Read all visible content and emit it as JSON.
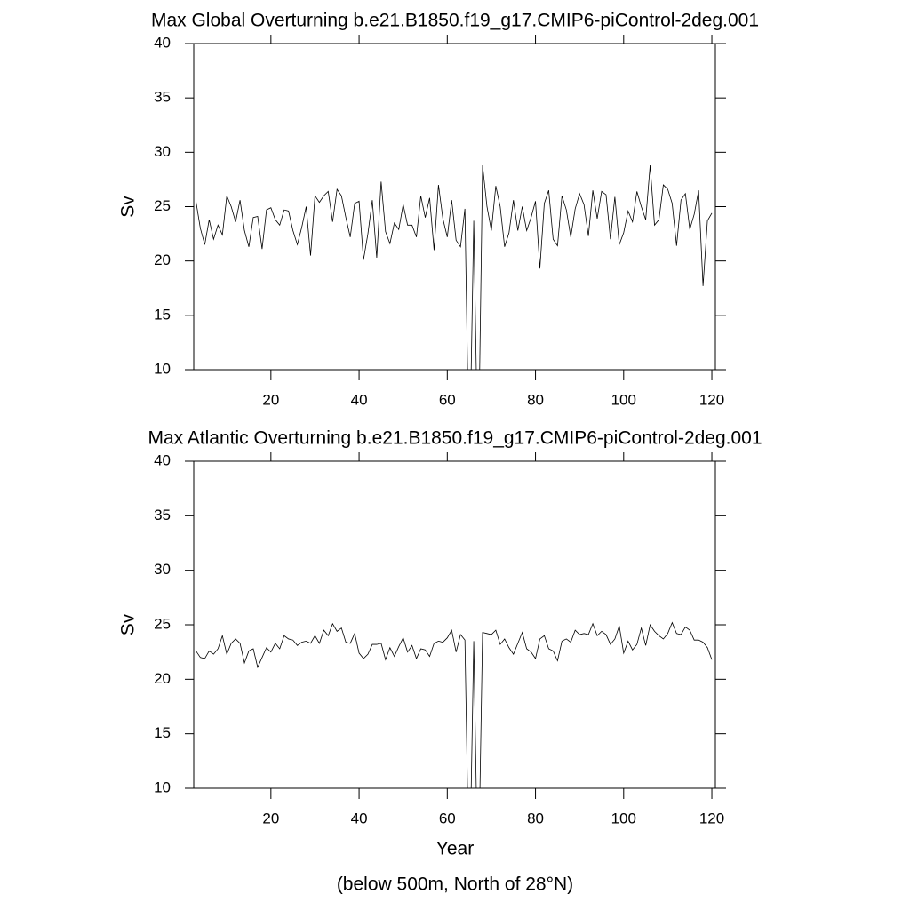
{
  "chart_data": [
    {
      "type": "line",
      "title": "Max Global Overturning b.e21.B1850.f19_g17.CMIP6-piControl-2deg.001",
      "y_label": "Sv",
      "color": "#000000",
      "x": [
        3,
        4,
        5,
        6,
        7,
        8,
        9,
        10,
        11,
        12,
        13,
        14,
        15,
        16,
        17,
        18,
        19,
        20,
        21,
        22,
        23,
        24,
        25,
        26,
        27,
        28,
        29,
        30,
        31,
        32,
        33,
        34,
        35,
        36,
        37,
        38,
        39,
        40,
        41,
        42,
        43,
        44,
        45,
        46,
        47,
        48,
        49,
        50,
        51,
        52,
        53,
        54,
        55,
        56,
        57,
        58,
        59,
        60,
        61,
        62,
        63,
        64,
        65,
        66,
        67,
        68,
        69,
        70,
        71,
        72,
        73,
        74,
        75,
        76,
        77,
        78,
        79,
        80,
        81,
        82,
        83,
        84,
        85,
        86,
        87,
        88,
        89,
        90,
        91,
        92,
        93,
        94,
        95,
        96,
        97,
        98,
        99,
        100,
        101,
        102,
        103,
        104,
        105,
        106,
        107,
        108,
        109,
        110,
        111,
        112,
        113,
        114,
        115,
        116,
        117,
        118,
        119,
        120
      ],
      "values": [
        25.5,
        23,
        21.5,
        23.8,
        22,
        23.3,
        22.4,
        26,
        25,
        23.6,
        25.6,
        22.8,
        21.3,
        24,
        24.1,
        21.1,
        24.7,
        24.9,
        23.8,
        23.3,
        24.7,
        24.6,
        22.8,
        21.5,
        23.1,
        25,
        20.5,
        26,
        25.4,
        26,
        26.4,
        23.6,
        26.6,
        26,
        24,
        22.2,
        25.3,
        25.5,
        20.1,
        22.5,
        25.6,
        20.3,
        27.3,
        22.7,
        21.6,
        23.5,
        22.9,
        25.2,
        23.3,
        23.3,
        22.2,
        26,
        24,
        25.8,
        21,
        27,
        23.9,
        22.2,
        25.6,
        21.9,
        21.3,
        24.8,
        0,
        23.7,
        0,
        28.8,
        25,
        22.8,
        26.9,
        25,
        21.3,
        22.6,
        25.6,
        22.8,
        25,
        22.8,
        24,
        25.5,
        19.3,
        25.3,
        26.5,
        22,
        21.4,
        26,
        24.7,
        22.2,
        24.8,
        26.2,
        25.2,
        22.3,
        26.5,
        23.9,
        26.4,
        26.1,
        22,
        25.9,
        21.5,
        22.6,
        24.6,
        23.6,
        26.4,
        25,
        23.8,
        28.8,
        23.3,
        23.8,
        27,
        26.6,
        25.3,
        21.4,
        25.6,
        26.2,
        22.9,
        24.3,
        26.5,
        17.7,
        23.7,
        24.4
      ],
      "xlim": [
        2.5,
        120.8
      ],
      "xticks": [
        20,
        40,
        60,
        80,
        100,
        120
      ],
      "ylim": [
        10,
        40
      ],
      "yticks": [
        10,
        15,
        20,
        25,
        30,
        35,
        40
      ]
    },
    {
      "type": "line",
      "title": "Max Atlantic Overturning b.e21.B1850.f19_g17.CMIP6-piControl-2deg.001",
      "y_label": "Sv",
      "x_label": "Year",
      "caption": "(below 500m, North of 28°N)",
      "color": "#000000",
      "x": [
        3,
        4,
        5,
        6,
        7,
        8,
        9,
        10,
        11,
        12,
        13,
        14,
        15,
        16,
        17,
        18,
        19,
        20,
        21,
        22,
        23,
        24,
        25,
        26,
        27,
        28,
        29,
        30,
        31,
        32,
        33,
        34,
        35,
        36,
        37,
        38,
        39,
        40,
        41,
        42,
        43,
        44,
        45,
        46,
        47,
        48,
        49,
        50,
        51,
        52,
        53,
        54,
        55,
        56,
        57,
        58,
        59,
        60,
        61,
        62,
        63,
        64,
        65,
        66,
        67,
        68,
        69,
        70,
        71,
        72,
        73,
        74,
        75,
        76,
        77,
        78,
        79,
        80,
        81,
        82,
        83,
        84,
        85,
        86,
        87,
        88,
        89,
        90,
        91,
        92,
        93,
        94,
        95,
        96,
        97,
        98,
        99,
        100,
        101,
        102,
        103,
        104,
        105,
        106,
        107,
        108,
        109,
        110,
        111,
        112,
        113,
        114,
        115,
        116,
        117,
        118,
        119,
        120
      ],
      "values": [
        22.6,
        22,
        21.9,
        22.6,
        22.3,
        22.8,
        24,
        22.3,
        23.3,
        23.7,
        23.3,
        21.5,
        22.6,
        22.8,
        21.1,
        22,
        22.9,
        22.5,
        23.3,
        22.8,
        24,
        23.7,
        23.6,
        23.1,
        23.4,
        23.5,
        23.3,
        24,
        23.3,
        24.5,
        24,
        25.1,
        24.4,
        24.7,
        23.4,
        23.3,
        24.2,
        22.4,
        21.9,
        22.3,
        23.2,
        23.2,
        23.3,
        21.8,
        22.9,
        22.1,
        23,
        23.8,
        22.5,
        23.1,
        21.9,
        22.8,
        22.7,
        22.1,
        23.3,
        23.5,
        23.4,
        23.8,
        24.5,
        22.5,
        24.1,
        23.6,
        0,
        23.5,
        0,
        24.3,
        24.2,
        24.1,
        24.5,
        23.2,
        23.7,
        22.9,
        22.3,
        23.3,
        24.3,
        22.8,
        22.5,
        21.9,
        23.7,
        24,
        22.8,
        22.6,
        21.7,
        23.5,
        23.7,
        23.4,
        24.5,
        24.1,
        24.2,
        24.1,
        25.1,
        24,
        24.4,
        24.1,
        23.2,
        23.7,
        24.9,
        22.4,
        23.5,
        22.7,
        23.2,
        24.7,
        23.1,
        25,
        24.4,
        24,
        23.7,
        24.2,
        25.2,
        24.2,
        24.1,
        24.8,
        24.5,
        23.6,
        23.6,
        23.4,
        22.9,
        21.8
      ],
      "xlim": [
        2.5,
        120.8
      ],
      "xticks": [
        20,
        40,
        60,
        80,
        100,
        120
      ],
      "ylim": [
        10,
        40
      ],
      "yticks": [
        10,
        15,
        20,
        25,
        30,
        35,
        40
      ]
    }
  ]
}
